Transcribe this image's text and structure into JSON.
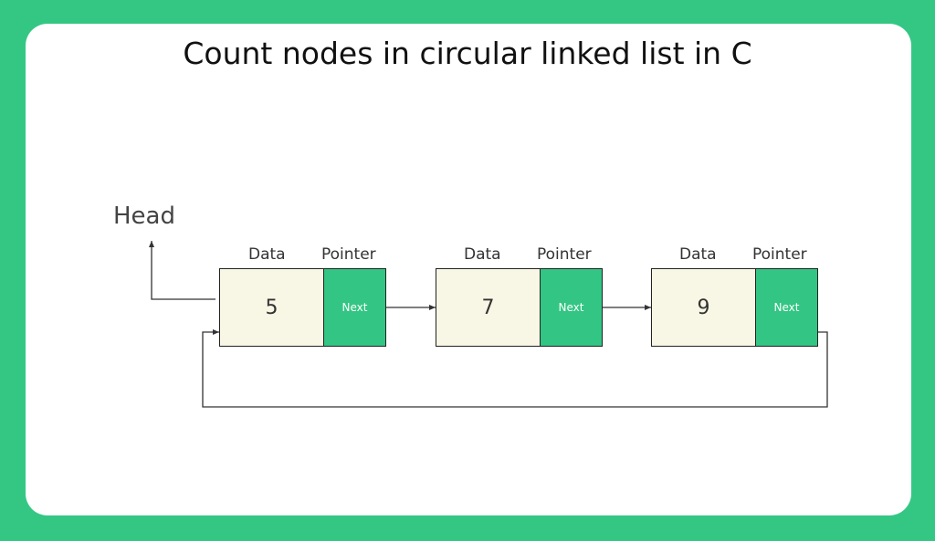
{
  "title": "Count nodes in circular linked list in C",
  "head_label": "Head",
  "colors": {
    "background": "#34c784",
    "card": "#ffffff",
    "data_cell": "#f8f6e4",
    "pointer_cell": "#33c584",
    "line": "#333333"
  },
  "nodes": [
    {
      "data_label": "Data",
      "pointer_label": "Pointer",
      "value": "5",
      "next_text": "Next"
    },
    {
      "data_label": "Data",
      "pointer_label": "Pointer",
      "value": "7",
      "next_text": "Next"
    },
    {
      "data_label": "Data",
      "pointer_label": "Pointer",
      "value": "9",
      "next_text": "Next"
    }
  ]
}
